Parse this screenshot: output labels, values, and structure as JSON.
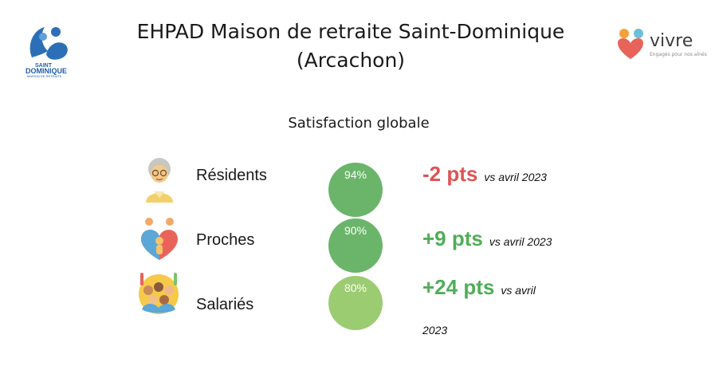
{
  "header": {
    "title_line1": "EHPAD Maison de retraite Saint-Dominique",
    "title_line2": "(Arcachon)",
    "left_logo": {
      "line1": "SAINT",
      "line2": "DOMINIQUE",
      "line3": "MAISON DE RETRAITE",
      "line4": "depuis 1994"
    },
    "right_logo": {
      "name": "vivre",
      "tagline": "Engagés pour nos aînés"
    }
  },
  "section": {
    "title": "Satisfaction globale"
  },
  "rows": [
    {
      "label": "Résidents",
      "value": "94%",
      "delta": "-2 pts",
      "vs": "vs avril 2023",
      "icon": "elderly-woman-icon",
      "circle_color": "#6bb56a",
      "delta_color": "#e05353"
    },
    {
      "label": "Proches",
      "value": "90%",
      "delta": "+9 pts",
      "vs": "vs avril 2023",
      "icon": "family-heart-icon",
      "circle_color": "#6bb56a",
      "delta_color": "#4fae57"
    },
    {
      "label": "Salariés",
      "value": "80%",
      "delta": "+24 pts",
      "vs_line1": "vs avril",
      "vs_line2": "2023",
      "icon": "team-crowd-icon",
      "circle_color": "#9ccc72",
      "delta_color": "#4fae57"
    }
  ]
}
